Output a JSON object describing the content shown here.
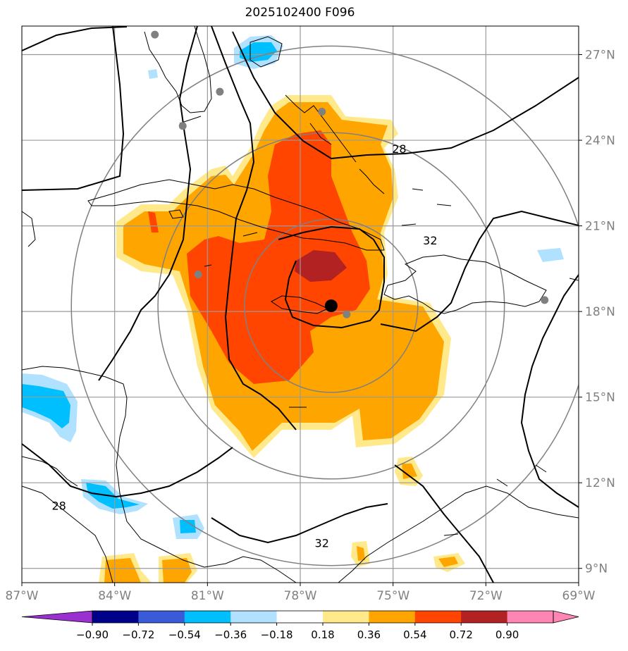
{
  "title": "2025102400 F096",
  "map": {
    "lon_range": [
      -87,
      -69
    ],
    "lat_range": [
      8.5,
      28
    ],
    "lon_ticks": [
      {
        "value": -87,
        "label": "87°W"
      },
      {
        "value": -84,
        "label": "84°W"
      },
      {
        "value": -81,
        "label": "81°W"
      },
      {
        "value": -78,
        "label": "78°W"
      },
      {
        "value": -75,
        "label": "75°W"
      },
      {
        "value": -72,
        "label": "72°W"
      },
      {
        "value": -69,
        "label": "69°W"
      }
    ],
    "lat_ticks": [
      {
        "value": 27,
        "label": "27°N"
      },
      {
        "value": 24,
        "label": "24°N"
      },
      {
        "value": 21,
        "label": "21°N"
      },
      {
        "value": 18,
        "label": "18°N"
      },
      {
        "value": 15,
        "label": "15°N"
      },
      {
        "value": 12,
        "label": "12°N"
      },
      {
        "value": 9,
        "label": "9°N"
      }
    ],
    "storm_center": {
      "lon": -77.0,
      "lat": 18.2
    },
    "range_rings_deg": [
      2.8,
      5.6,
      8.4
    ],
    "contour_labels": [
      {
        "text": "28",
        "lon": -74.8,
        "lat": 23.7
      },
      {
        "text": "32",
        "lon": -73.8,
        "lat": 20.5
      },
      {
        "text": "28",
        "lon": -85.8,
        "lat": 11.2
      },
      {
        "text": "32",
        "lon": -77.3,
        "lat": 9.9
      }
    ],
    "station_points": [
      {
        "lon": -82.7,
        "lat": 27.7
      },
      {
        "lon": -80.6,
        "lat": 25.7
      },
      {
        "lon": -81.8,
        "lat": 24.5
      },
      {
        "lon": -77.3,
        "lat": 25.0
      },
      {
        "lon": -81.3,
        "lat": 19.3
      },
      {
        "lon": -76.5,
        "lat": 17.9
      },
      {
        "lon": -70.1,
        "lat": 18.4
      }
    ]
  },
  "colorbar": {
    "tick_labels": [
      "−0.90",
      "−0.72",
      "−0.54",
      "−0.36",
      "−0.18",
      "0.18",
      "0.36",
      "0.54",
      "0.72",
      "0.90"
    ],
    "colors": [
      "#9b30d0",
      "#00008b",
      "#3a5bd9",
      "#00bfff",
      "#b0e2ff",
      "#ffffff",
      "#ffe98a",
      "#ffa500",
      "#ff4500",
      "#b22222",
      "#ff85b4",
      "#ff85b4"
    ]
  }
}
